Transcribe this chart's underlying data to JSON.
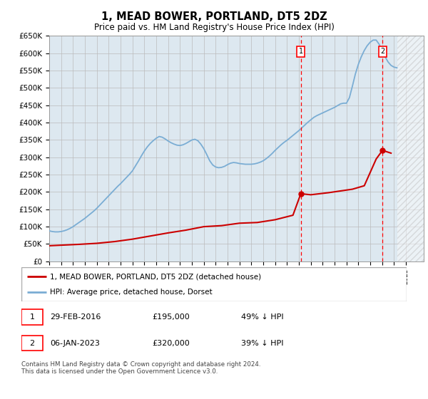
{
  "title": "1, MEAD BOWER, PORTLAND, DT5 2DZ",
  "subtitle": "Price paid vs. HM Land Registry's House Price Index (HPI)",
  "ylim": [
    0,
    650000
  ],
  "yticks": [
    0,
    50000,
    100000,
    150000,
    200000,
    250000,
    300000,
    350000,
    400000,
    450000,
    500000,
    550000,
    600000,
    650000
  ],
  "ytick_labels": [
    "£0",
    "£50K",
    "£100K",
    "£150K",
    "£200K",
    "£250K",
    "£300K",
    "£350K",
    "£400K",
    "£450K",
    "£500K",
    "£550K",
    "£600K",
    "£650K"
  ],
  "annotation1": {
    "label": "1",
    "date": "29-FEB-2016",
    "price": 195000,
    "x_year": 2016.16,
    "pct": "49% ↓ HPI"
  },
  "annotation2": {
    "label": "2",
    "date": "06-JAN-2023",
    "price": 320000,
    "x_year": 2023.03,
    "pct": "39% ↓ HPI"
  },
  "legend_line1": "1, MEAD BOWER, PORTLAND, DT5 2DZ (detached house)",
  "legend_line2": "HPI: Average price, detached house, Dorset",
  "footer": "Contains HM Land Registry data © Crown copyright and database right 2024.\nThis data is licensed under the Open Government Licence v3.0.",
  "line_color_red": "#cc0000",
  "line_color_blue": "#7aadd4",
  "bg_color": "#dde8f0",
  "grid_color": "#bbbbbb",
  "hpi_data_x": [
    1995.0,
    1995.25,
    1995.5,
    1995.75,
    1996.0,
    1996.25,
    1996.5,
    1996.75,
    1997.0,
    1997.25,
    1997.5,
    1997.75,
    1998.0,
    1998.25,
    1998.5,
    1998.75,
    1999.0,
    1999.25,
    1999.5,
    1999.75,
    2000.0,
    2000.25,
    2000.5,
    2000.75,
    2001.0,
    2001.25,
    2001.5,
    2001.75,
    2002.0,
    2002.25,
    2002.5,
    2002.75,
    2003.0,
    2003.25,
    2003.5,
    2003.75,
    2004.0,
    2004.25,
    2004.5,
    2004.75,
    2005.0,
    2005.25,
    2005.5,
    2005.75,
    2006.0,
    2006.25,
    2006.5,
    2006.75,
    2007.0,
    2007.25,
    2007.5,
    2007.75,
    2008.0,
    2008.25,
    2008.5,
    2008.75,
    2009.0,
    2009.25,
    2009.5,
    2009.75,
    2010.0,
    2010.25,
    2010.5,
    2010.75,
    2011.0,
    2011.25,
    2011.5,
    2011.75,
    2012.0,
    2012.25,
    2012.5,
    2012.75,
    2013.0,
    2013.25,
    2013.5,
    2013.75,
    2014.0,
    2014.25,
    2014.5,
    2014.75,
    2015.0,
    2015.25,
    2015.5,
    2015.75,
    2016.0,
    2016.25,
    2016.5,
    2016.75,
    2017.0,
    2017.25,
    2017.5,
    2017.75,
    2018.0,
    2018.25,
    2018.5,
    2018.75,
    2019.0,
    2019.25,
    2019.5,
    2019.75,
    2020.0,
    2020.25,
    2020.5,
    2020.75,
    2021.0,
    2021.25,
    2021.5,
    2021.75,
    2022.0,
    2022.25,
    2022.5,
    2022.75,
    2023.0,
    2023.25,
    2023.5,
    2023.75,
    2024.0,
    2024.25
  ],
  "hpi_data_y": [
    88000,
    86000,
    85000,
    85000,
    86000,
    88000,
    91000,
    95000,
    100000,
    106000,
    112000,
    118000,
    124000,
    131000,
    138000,
    145000,
    153000,
    162000,
    171000,
    180000,
    189000,
    198000,
    207000,
    216000,
    224000,
    233000,
    242000,
    251000,
    261000,
    275000,
    289000,
    304000,
    318000,
    330000,
    340000,
    348000,
    355000,
    360000,
    358000,
    353000,
    347000,
    342000,
    338000,
    335000,
    334000,
    336000,
    340000,
    345000,
    350000,
    352000,
    348000,
    338000,
    325000,
    308000,
    290000,
    278000,
    272000,
    270000,
    271000,
    274000,
    279000,
    283000,
    285000,
    284000,
    282000,
    281000,
    280000,
    280000,
    280000,
    281000,
    283000,
    286000,
    290000,
    296000,
    303000,
    311000,
    320000,
    328000,
    336000,
    343000,
    349000,
    356000,
    363000,
    370000,
    377000,
    385000,
    393000,
    401000,
    408000,
    415000,
    420000,
    424000,
    428000,
    432000,
    436000,
    440000,
    444000,
    449000,
    454000,
    456000,
    456000,
    472000,
    505000,
    540000,
    568000,
    590000,
    608000,
    622000,
    632000,
    638000,
    638000,
    626000,
    608000,
    590000,
    575000,
    565000,
    560000,
    558000
  ],
  "property_data_x": [
    1995.0,
    1997.5,
    1999.0,
    2000.5,
    2002.0,
    2003.5,
    2005.0,
    2006.5,
    2008.0,
    2009.5,
    2011.0,
    2012.5,
    2014.0,
    2015.5,
    2016.16,
    2017.0,
    2018.5,
    2019.5,
    2020.5,
    2021.5,
    2022.5,
    2023.03,
    2023.75
  ],
  "property_data_y": [
    45000,
    49000,
    52000,
    57000,
    64000,
    73000,
    82000,
    90000,
    100000,
    103000,
    110000,
    112000,
    120000,
    133000,
    195000,
    192000,
    198000,
    203000,
    208000,
    218000,
    295000,
    320000,
    312000
  ],
  "hatch_x_start": 2024.3,
  "hatch_x_end": 2026.5,
  "xlim_left": 1995.0,
  "xlim_right": 2026.5
}
